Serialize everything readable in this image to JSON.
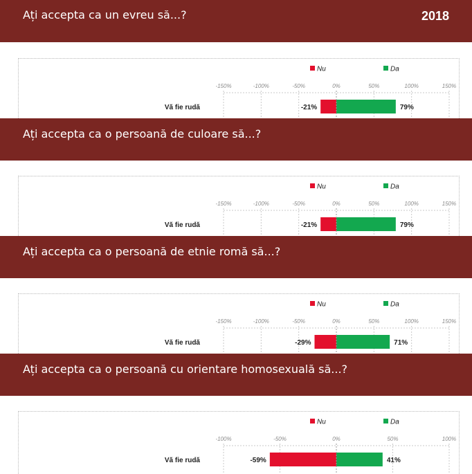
{
  "year": "2018",
  "legend": {
    "no": "Nu",
    "yes": "Da"
  },
  "colors": {
    "banner": "#7a2622",
    "no": "#e3102d",
    "yes": "#13a84f",
    "grid": "#c8c8c8"
  },
  "chart_data": [
    {
      "type": "bar",
      "title": "Ați accepta ca un evreu să...?",
      "categories": [
        "Vă fie rudă"
      ],
      "series": [
        {
          "name": "Nu",
          "values": [
            -21
          ],
          "labels": [
            "-21%"
          ]
        },
        {
          "name": "Da",
          "values": [
            79
          ],
          "labels": [
            "79%"
          ]
        }
      ],
      "xlim": [
        -150,
        150
      ],
      "ticks": [
        -150,
        -100,
        -50,
        0,
        50,
        100,
        150
      ],
      "tick_labels": [
        "-150%",
        "-100%",
        "-50%",
        "0%",
        "50%",
        "100%",
        "150%"
      ],
      "legend": "top"
    },
    {
      "type": "bar",
      "title": "Ați accepta ca o persoană de culoare să...?",
      "categories": [
        "Vă fie rudă"
      ],
      "series": [
        {
          "name": "Nu",
          "values": [
            -21
          ],
          "labels": [
            "-21%"
          ]
        },
        {
          "name": "Da",
          "values": [
            79
          ],
          "labels": [
            "79%"
          ]
        }
      ],
      "xlim": [
        -150,
        150
      ],
      "ticks": [
        -150,
        -100,
        -50,
        0,
        50,
        100,
        150
      ],
      "tick_labels": [
        "-150%",
        "-100%",
        "-50%",
        "0%",
        "50%",
        "100%",
        "150%"
      ],
      "legend": "top"
    },
    {
      "type": "bar",
      "title": "Ați accepta ca o persoană de etnie romă să...?",
      "categories": [
        "Vă fie rudă"
      ],
      "series": [
        {
          "name": "Nu",
          "values": [
            -29
          ],
          "labels": [
            "-29%"
          ]
        },
        {
          "name": "Da",
          "values": [
            71
          ],
          "labels": [
            "71%"
          ]
        }
      ],
      "xlim": [
        -150,
        150
      ],
      "ticks": [
        -150,
        -100,
        -50,
        0,
        50,
        100,
        150
      ],
      "tick_labels": [
        "-150%",
        "-100%",
        "-50%",
        "0%",
        "50%",
        "100%",
        "150%"
      ],
      "legend": "top"
    },
    {
      "type": "bar",
      "title": "Ați accepta ca o persoană cu orientare homosexuală să...?",
      "categories": [
        "Vă fie rudă"
      ],
      "series": [
        {
          "name": "Nu",
          "values": [
            -59
          ],
          "labels": [
            "-59%"
          ]
        },
        {
          "name": "Da",
          "values": [
            41
          ],
          "labels": [
            "41%"
          ]
        }
      ],
      "xlim": [
        -100,
        100
      ],
      "ticks": [
        -100,
        -50,
        0,
        50,
        100
      ],
      "tick_labels": [
        "-100%",
        "-50%",
        "0%",
        "50%",
        "100%"
      ],
      "legend": "top"
    }
  ]
}
